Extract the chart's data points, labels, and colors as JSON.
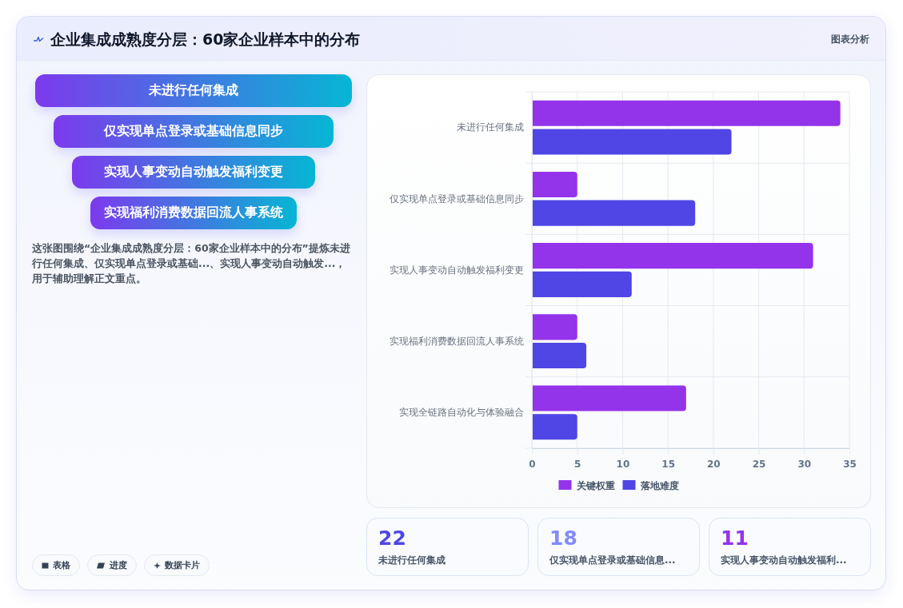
{
  "chart_data": [
    {
      "type": "other",
      "title": "企业集成成熟度分层：60家企业样本中的分布",
      "categories": [
        "未进行任何集成",
        "仅实现单点登录或基础信息同步",
        "实现人事变动自动触发福利变更",
        "实现福利消费数据回流人事系统"
      ],
      "annotations": [
        "图表分析",
        "这张图围绕“企业集成成熟度分层：60家企业样本中的分布”提炼未进行任何集成、仅实现单点登录或基础...、实现人事变动自动触发...，用于辅助理解正文重点。",
        "表格",
        "进度",
        "数据卡片"
      ]
    },
    {
      "type": "bar",
      "orientation": "horizontal",
      "categories": [
        "未进行任何集成",
        "仅实现单点登录或基础信息同步",
        "实现人事变动自动触发福利变更",
        "实现福利消费数据回流人事系统",
        "实现全链路自动化与体验融合"
      ],
      "series": [
        {
          "name": "关键权重",
          "color": "#9333ea",
          "values": [
            34,
            5,
            31,
            5,
            17
          ]
        },
        {
          "name": "落地难度",
          "color": "#4f46e5",
          "values": [
            22,
            18,
            11,
            6,
            5
          ]
        }
      ],
      "xlim": [
        0,
        35
      ],
      "xticks": [
        0,
        5,
        10,
        15,
        20,
        25,
        30,
        35
      ],
      "grid": true,
      "legend": "bottom"
    },
    {
      "type": "other",
      "annotations": [
        "22",
        "未进行任何集成",
        "18",
        "仅实现单点登录或基础信息...",
        "11",
        "实现人事变动自动触发福利..."
      ]
    }
  ]
}
